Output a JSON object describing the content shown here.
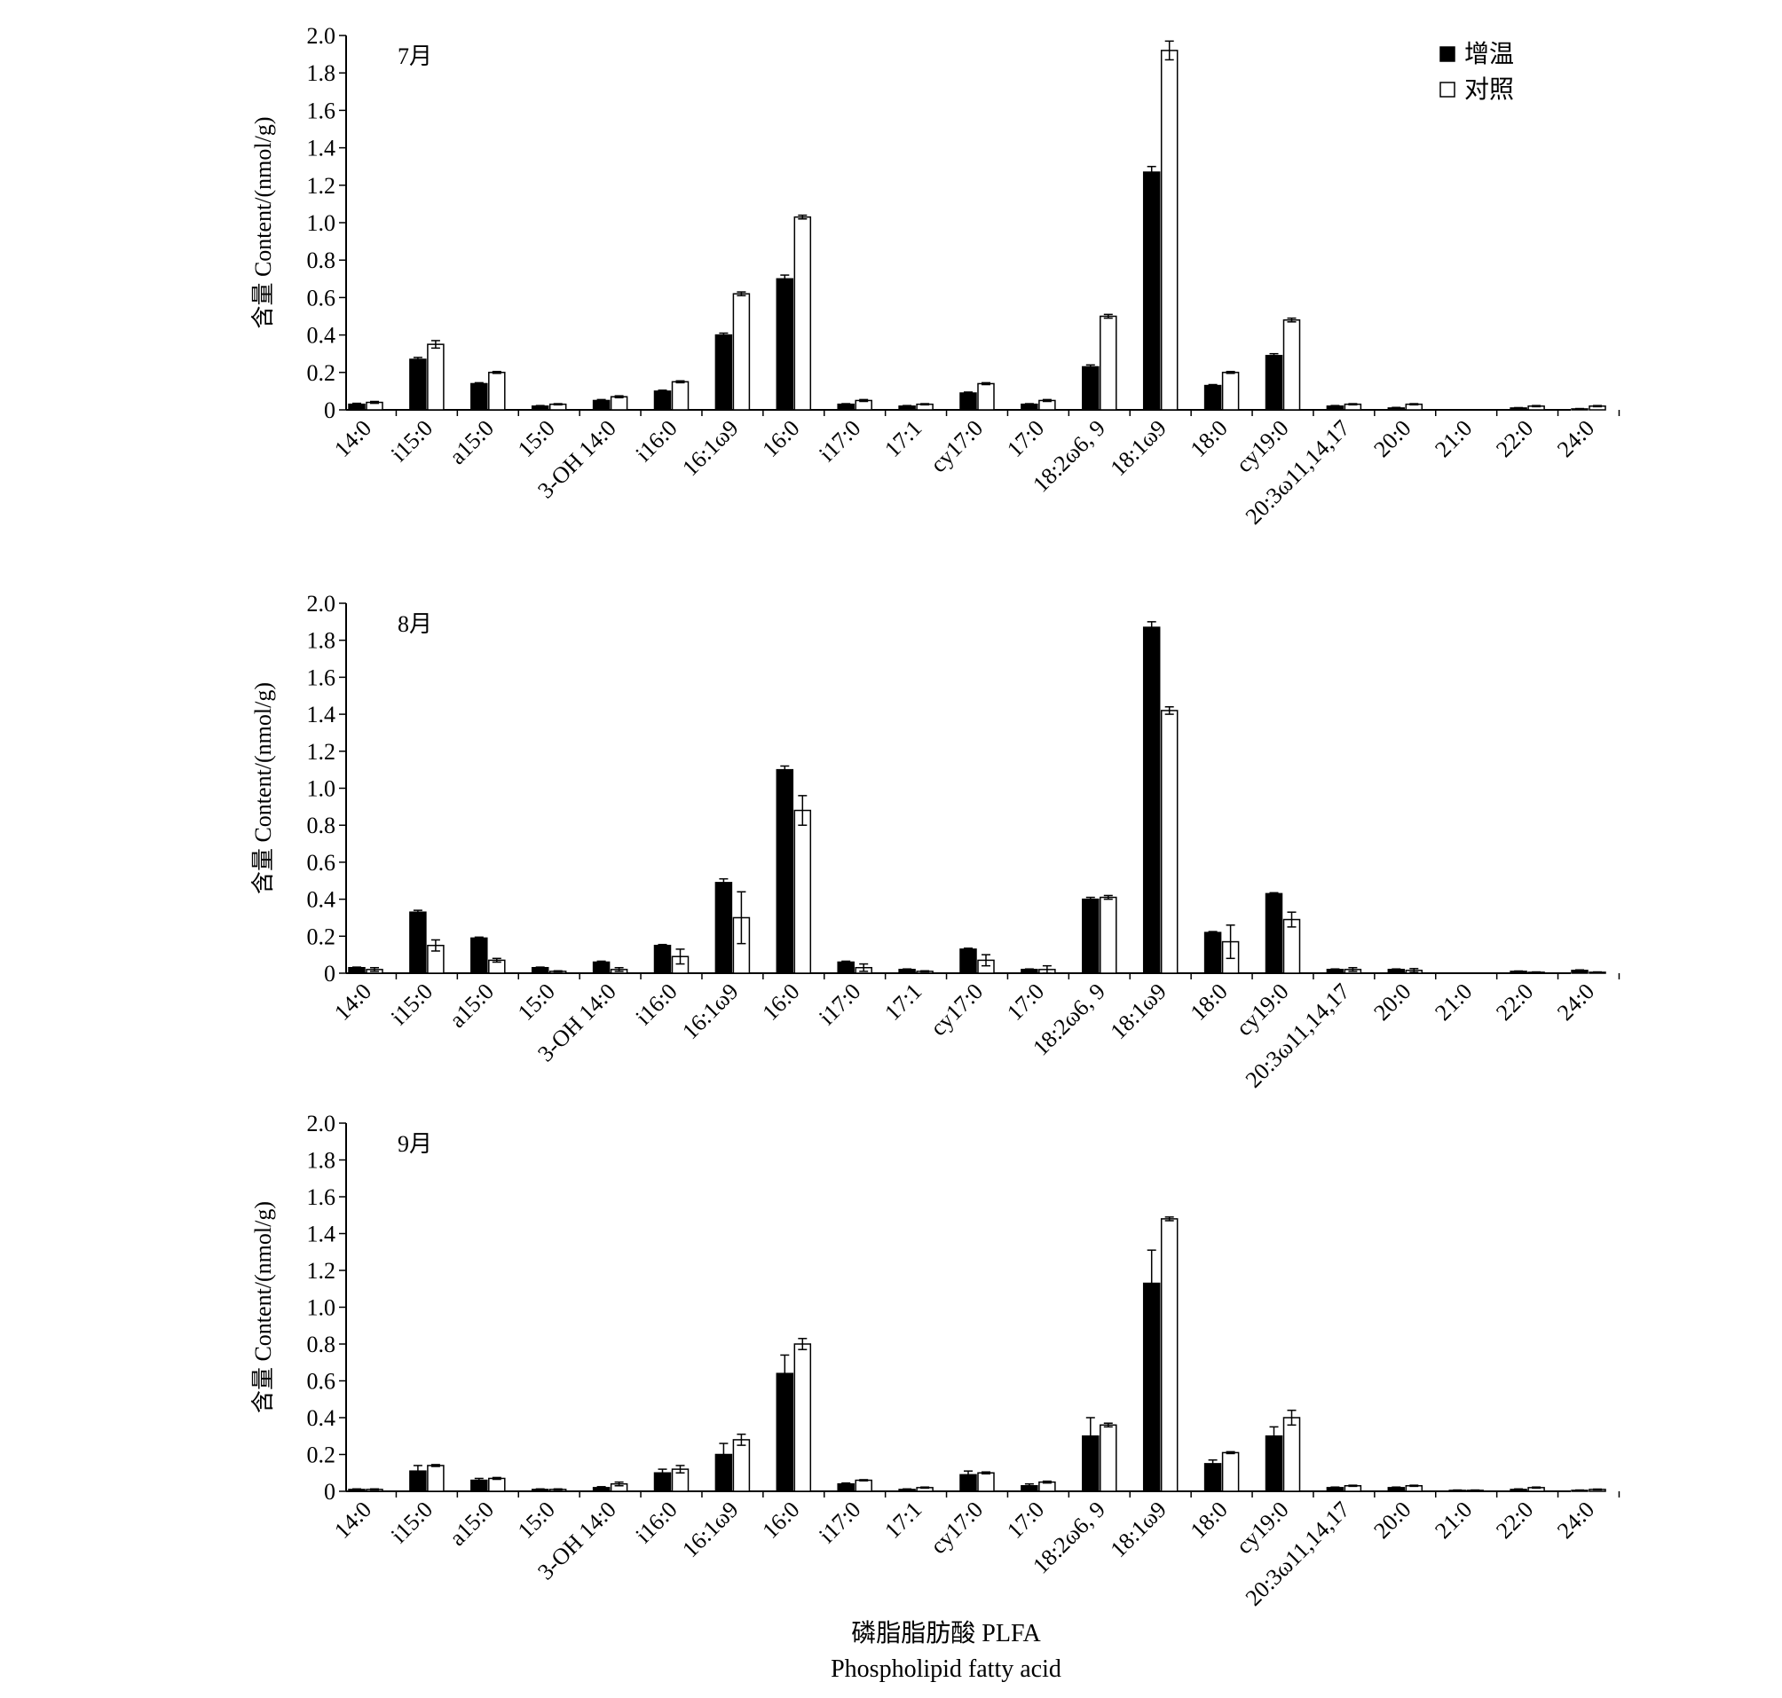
{
  "legend": {
    "items": [
      {
        "label": "增温",
        "color": "#000000"
      },
      {
        "label": "对照",
        "color": "#ffffff"
      }
    ]
  },
  "xaxis_title": {
    "line1": "磷脂脂肪酸 PLFA",
    "line2": "Phospholipid fatty acid"
  },
  "chart_data": [
    {
      "type": "bar",
      "panel_label": "7月",
      "ylabel": "含量 Content/(nmol/g)",
      "ylim": [
        0,
        2.0
      ],
      "yticks": [
        "0",
        "0.2",
        "0.4",
        "0.6",
        "0.8",
        "1.0",
        "1.2",
        "1.4",
        "1.6",
        "1.8",
        "2.0"
      ],
      "categories": [
        "14:0",
        "i15:0",
        "a15:0",
        "15:0",
        "3-OH 14:0",
        "i16:0",
        "16:1ω9",
        "16:0",
        "i17:0",
        "17:1",
        "cy17:0",
        "17:0",
        "18:2ω6, 9",
        "18:1ω9",
        "18:0",
        "cy19:0",
        "20:3ω11,14,17",
        "20:0",
        "21:0",
        "22:0",
        "24:0"
      ],
      "series": [
        {
          "name": "增温",
          "values": [
            0.03,
            0.27,
            0.14,
            0.02,
            0.05,
            0.1,
            0.4,
            0.7,
            0.03,
            0.02,
            0.09,
            0.03,
            0.23,
            1.27,
            0.13,
            0.29,
            0.02,
            0.01,
            0,
            0.01,
            0.005
          ],
          "errors": [
            0.005,
            0.01,
            0.005,
            0.003,
            0.005,
            0.005,
            0.01,
            0.02,
            0.003,
            0.003,
            0.005,
            0.003,
            0.01,
            0.03,
            0.005,
            0.01,
            0.003,
            0.003,
            0,
            0.002,
            0.002
          ]
        },
        {
          "name": "对照",
          "values": [
            0.04,
            0.35,
            0.2,
            0.03,
            0.07,
            0.15,
            0.62,
            1.03,
            0.05,
            0.03,
            0.14,
            0.05,
            0.5,
            1.92,
            0.2,
            0.48,
            0.03,
            0.03,
            0,
            0.02,
            0.02
          ],
          "errors": [
            0.005,
            0.02,
            0.005,
            0.003,
            0.005,
            0.005,
            0.01,
            0.01,
            0.005,
            0.003,
            0.005,
            0.005,
            0.01,
            0.05,
            0.005,
            0.01,
            0.003,
            0.003,
            0,
            0.003,
            0.003
          ]
        }
      ]
    },
    {
      "type": "bar",
      "panel_label": "8月",
      "ylabel": "含量 Content/(nmol/g)",
      "ylim": [
        0,
        2.0
      ],
      "yticks": [
        "0",
        "0.2",
        "0.4",
        "0.6",
        "0.8",
        "1.0",
        "1.2",
        "1.4",
        "1.6",
        "1.8",
        "2.0"
      ],
      "categories": [
        "14:0",
        "i15:0",
        "a15:0",
        "15:0",
        "3-OH 14:0",
        "i16:0",
        "16:1ω9",
        "16:0",
        "i17:0",
        "17:1",
        "cy17:0",
        "17:0",
        "18:2ω6, 9",
        "18:1ω9",
        "18:0",
        "cy19:0",
        "20:3ω11,14,17",
        "20:0",
        "21:0",
        "22:0",
        "24:0"
      ],
      "series": [
        {
          "name": "增温",
          "values": [
            0.03,
            0.33,
            0.19,
            0.03,
            0.06,
            0.15,
            0.49,
            1.1,
            0.06,
            0.02,
            0.13,
            0.02,
            0.4,
            1.87,
            0.22,
            0.43,
            0.02,
            0.02,
            0,
            0.01,
            0.015
          ],
          "errors": [
            0.003,
            0.01,
            0.005,
            0.003,
            0.005,
            0.005,
            0.02,
            0.02,
            0.005,
            0.003,
            0.005,
            0.003,
            0.01,
            0.03,
            0.005,
            0.005,
            0.003,
            0.003,
            0,
            0.002,
            0.003
          ]
        },
        {
          "name": "对照",
          "values": [
            0.02,
            0.15,
            0.07,
            0.01,
            0.02,
            0.09,
            0.3,
            0.88,
            0.03,
            0.01,
            0.07,
            0.02,
            0.41,
            1.42,
            0.17,
            0.29,
            0.02,
            0.015,
            0,
            0.005,
            0.005
          ],
          "errors": [
            0.01,
            0.03,
            0.01,
            0.003,
            0.01,
            0.04,
            0.14,
            0.08,
            0.02,
            0.003,
            0.03,
            0.02,
            0.01,
            0.02,
            0.09,
            0.04,
            0.01,
            0.01,
            0,
            0.002,
            0.002
          ]
        }
      ]
    },
    {
      "type": "bar",
      "panel_label": "9月",
      "ylabel": "含量 Content/(nmol/g)",
      "ylim": [
        0,
        2.0
      ],
      "yticks": [
        "0",
        "0.2",
        "0.4",
        "0.6",
        "0.8",
        "1.0",
        "1.2",
        "1.4",
        "1.6",
        "1.8",
        "2.0"
      ],
      "categories": [
        "14:0",
        "i15:0",
        "a15:0",
        "15:0",
        "3-OH 14:0",
        "i16:0",
        "16:1ω9",
        "16:0",
        "i17:0",
        "17:1",
        "cy17:0",
        "17:0",
        "18:2ω6, 9",
        "18:1ω9",
        "18:0",
        "cy19:0",
        "20:3ω11,14,17",
        "20:0",
        "21:0",
        "22:0",
        "24:0"
      ],
      "series": [
        {
          "name": "增温",
          "values": [
            0.01,
            0.11,
            0.06,
            0.01,
            0.02,
            0.1,
            0.2,
            0.64,
            0.04,
            0.01,
            0.09,
            0.03,
            0.3,
            1.13,
            0.15,
            0.3,
            0.02,
            0.02,
            0.005,
            0.01,
            0.005
          ],
          "errors": [
            0.003,
            0.03,
            0.01,
            0.003,
            0.005,
            0.02,
            0.06,
            0.1,
            0.005,
            0.003,
            0.02,
            0.01,
            0.1,
            0.18,
            0.02,
            0.05,
            0.003,
            0.003,
            0.002,
            0.003,
            0.002
          ]
        },
        {
          "name": "对照",
          "values": [
            0.01,
            0.14,
            0.07,
            0.01,
            0.04,
            0.12,
            0.28,
            0.8,
            0.06,
            0.02,
            0.1,
            0.05,
            0.36,
            1.48,
            0.21,
            0.4,
            0.03,
            0.03,
            0.005,
            0.02,
            0.01
          ],
          "errors": [
            0.003,
            0.005,
            0.005,
            0.003,
            0.01,
            0.02,
            0.03,
            0.03,
            0.003,
            0.003,
            0.005,
            0.005,
            0.01,
            0.01,
            0.005,
            0.04,
            0.003,
            0.003,
            0.002,
            0.003,
            0.002
          ]
        }
      ]
    }
  ]
}
